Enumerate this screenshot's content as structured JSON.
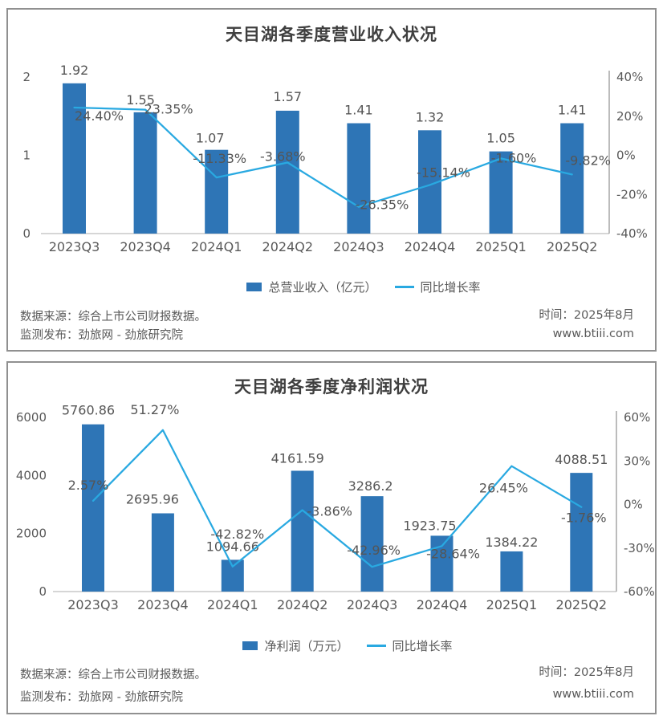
{
  "brand": {
    "bar_color": "#2E75B6",
    "line_color": "#29A9E1",
    "title_color": "#3f3f3f",
    "label_color": "#595959"
  },
  "chart_data": [
    {
      "type": "bar",
      "combo": "bar+line",
      "title": "天目湖各季度营业收入状况",
      "categories": [
        "2023Q3",
        "2023Q4",
        "2024Q1",
        "2024Q2",
        "2024Q3",
        "2024Q4",
        "2025Q1",
        "2025Q2"
      ],
      "series": [
        {
          "name": "总营业收入（亿元）",
          "type": "bar",
          "axis": "left",
          "values": [
            1.92,
            1.55,
            1.07,
            1.57,
            1.41,
            1.32,
            1.05,
            1.41
          ],
          "labels": [
            "1.92",
            "1.55",
            "1.07",
            "1.57",
            "1.41",
            "1.32",
            "1.05",
            "1.41"
          ]
        },
        {
          "name": "同比增长率",
          "type": "line",
          "axis": "right",
          "values": [
            24.4,
            23.35,
            -11.33,
            -3.68,
            -26.35,
            -15.14,
            -1.6,
            -9.82
          ],
          "labels": [
            "24.40%",
            "23.35%",
            "-11.33%",
            "-3.68%",
            "-26.35%",
            "-15.14%",
            "-1.60%",
            "-9.82%"
          ]
        }
      ],
      "left_axis": {
        "min": 0,
        "max": 2,
        "tick_values": [
          2,
          1,
          0
        ],
        "ticks": [
          "2",
          "1",
          "0"
        ]
      },
      "right_axis": {
        "min": -40,
        "max": 40,
        "tick_values": [
          40,
          20,
          0,
          -20,
          -40
        ],
        "ticks": [
          "40%",
          "20%",
          "0%",
          "-20%",
          "-40%"
        ]
      },
      "grid": false,
      "legend_position": "bottom",
      "label_offsets": {
        "bar": [
          [
            0,
            -16
          ],
          [
            -6,
            -15
          ],
          [
            -8,
            -14
          ],
          [
            0,
            -17
          ],
          [
            0,
            -16
          ],
          [
            0,
            -16
          ],
          [
            0,
            -16
          ],
          [
            0,
            -16
          ]
        ],
        "line": [
          [
            31,
            11
          ],
          [
            29,
            0
          ],
          [
            4,
            -23
          ],
          [
            -6,
            -7
          ],
          [
            29,
            -2
          ],
          [
            17,
            -15
          ],
          [
            16,
            0
          ],
          [
            20,
            -17
          ]
        ]
      },
      "footer": {
        "source": "数据来源：综合上市公司财报数据。",
        "publisher": "监测发布：劲旅网 - 劲旅研究院",
        "time": "时间：2025年8月",
        "site": "www.btiii.com"
      }
    },
    {
      "type": "bar",
      "combo": "bar+line",
      "title": "天目湖各季度净利润状况",
      "categories": [
        "2023Q3",
        "2023Q4",
        "2024Q1",
        "2024Q2",
        "2024Q3",
        "2024Q4",
        "2025Q1",
        "2025Q2"
      ],
      "series": [
        {
          "name": "净利润（万元）",
          "type": "bar",
          "axis": "left",
          "values": [
            5760.86,
            2695.96,
            1094.66,
            4161.59,
            3286.2,
            1923.75,
            1384.22,
            4088.51
          ],
          "labels": [
            "5760.86",
            "2695.96",
            "1094.66",
            "4161.59",
            "3286.2",
            "1923.75",
            "1384.22",
            "4088.51"
          ]
        },
        {
          "name": "同比增长率",
          "type": "line",
          "axis": "right",
          "values": [
            2.57,
            51.27,
            -42.82,
            -3.86,
            -42.96,
            -28.64,
            26.45,
            -1.76
          ],
          "labels": [
            "2.57%",
            "51.27%",
            "-42.82%",
            "-3.86%",
            "-42.96%",
            "-28.64%",
            "26.45%",
            "-1.76%"
          ]
        }
      ],
      "left_axis": {
        "min": 0,
        "max": 6000,
        "tick_values": [
          6000,
          4000,
          2000,
          0
        ],
        "ticks": [
          "6000",
          "4000",
          "2000",
          "0"
        ]
      },
      "right_axis": {
        "min": -60,
        "max": 60,
        "tick_values": [
          60,
          30,
          0,
          -30,
          -60
        ],
        "ticks": [
          "60%",
          "30%",
          "0%",
          "-30%",
          "-60%"
        ]
      },
      "grid": false,
      "legend_position": "bottom",
      "label_offsets": {
        "bar": [
          [
            -6,
            -17
          ],
          [
            -13,
            -17
          ],
          [
            0,
            -16
          ],
          [
            -6,
            -15
          ],
          [
            -2,
            -12
          ],
          [
            -15,
            -12
          ],
          [
            0,
            -11
          ],
          [
            0,
            -16
          ]
        ],
        "line": [
          [
            -6,
            -19
          ],
          [
            -10,
            -25
          ],
          [
            6,
            -40
          ],
          [
            34,
            2
          ],
          [
            2,
            -20
          ],
          [
            14,
            10
          ],
          [
            -10,
            28
          ],
          [
            3,
            14
          ]
        ]
      },
      "footer": {
        "source": "数据来源：综合上市公司财报数据。",
        "publisher": "监测发布：劲旅网 - 劲旅研究院",
        "time": "时间：2025年8月",
        "site": "www.btiii.com"
      }
    }
  ]
}
